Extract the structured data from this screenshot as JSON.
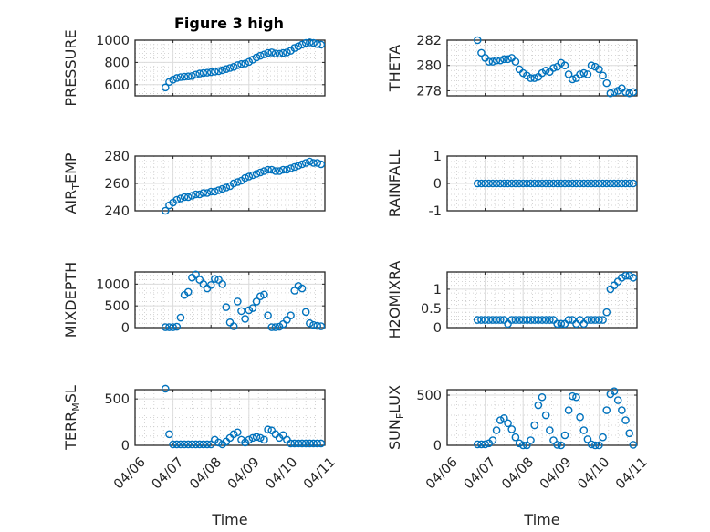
{
  "figure": {
    "title": "Figure 3 high",
    "xlabel": "Time"
  },
  "chart_data": {
    "type": "scatter",
    "title": "Figure 3 high",
    "xlabel": "Time",
    "x_unit": "days since 04/06",
    "x_tick_labels": [
      "04/06",
      "04/07",
      "04/08",
      "04/09",
      "04/10",
      "04/11"
    ],
    "xlim": [
      0,
      5
    ],
    "grid": "major+minor",
    "marker_color": "#0072BD",
    "x": [
      0.8,
      0.9,
      1.0,
      1.1,
      1.2,
      1.3,
      1.4,
      1.5,
      1.6,
      1.7,
      1.8,
      1.9,
      2.0,
      2.1,
      2.2,
      2.3,
      2.4,
      2.5,
      2.6,
      2.7,
      2.8,
      2.9,
      3.0,
      3.1,
      3.2,
      3.3,
      3.4,
      3.5,
      3.6,
      3.7,
      3.8,
      3.9,
      4.0,
      4.1,
      4.2,
      4.3,
      4.4,
      4.5,
      4.6,
      4.7,
      4.8,
      4.9
    ],
    "subplots": [
      {
        "ylabel": "PRESSURE",
        "ylim": [
          500,
          1000
        ],
        "yticks": [
          600,
          800,
          1000
        ],
        "col": 0,
        "row": 0,
        "values": [
          575,
          625,
          645,
          660,
          668,
          672,
          675,
          678,
          690,
          700,
          705,
          708,
          712,
          718,
          722,
          730,
          740,
          750,
          760,
          775,
          785,
          790,
          805,
          825,
          845,
          860,
          872,
          885,
          890,
          880,
          878,
          885,
          890,
          905,
          930,
          945,
          960,
          975,
          980,
          975,
          965,
          960
        ]
      },
      {
        "ylabel": "THETA",
        "ylim": [
          277.6,
          282
        ],
        "yticks": [
          278,
          280,
          282
        ],
        "col": 1,
        "row": 0,
        "values": [
          282,
          281.0,
          280.6,
          280.3,
          280.3,
          280.4,
          280.4,
          280.5,
          280.5,
          280.6,
          280.3,
          279.7,
          279.4,
          279.2,
          279.0,
          279.0,
          279.1,
          279.4,
          279.6,
          279.5,
          279.8,
          279.9,
          280.2,
          280.0,
          279.3,
          278.9,
          279.0,
          279.3,
          279.4,
          279.3,
          280.0,
          279.9,
          279.7,
          279.2,
          278.6,
          277.8,
          277.9,
          278.0,
          278.2,
          277.9,
          277.8,
          277.9
        ]
      },
      {
        "ylabel": "AIR_TEMP",
        "ylim": [
          240,
          280
        ],
        "yticks": [
          240,
          260,
          280
        ],
        "col": 0,
        "row": 1,
        "values": [
          240,
          244,
          246,
          248,
          249,
          250,
          250,
          251,
          252,
          252,
          253,
          253,
          254,
          254,
          255,
          256,
          257,
          258,
          260,
          261,
          262,
          264,
          265,
          266,
          267,
          268,
          269,
          270,
          270,
          269,
          269,
          270,
          270,
          271,
          272,
          273,
          274,
          275,
          276,
          275,
          275,
          274
        ]
      },
      {
        "ylabel": "RAINFALL",
        "ylim": [
          -1,
          1
        ],
        "yticks": [
          -1,
          0,
          1
        ],
        "col": 1,
        "row": 1,
        "values": [
          0,
          0,
          0,
          0,
          0,
          0,
          0,
          0,
          0,
          0,
          0,
          0,
          0,
          0,
          0,
          0,
          0,
          0,
          0,
          0,
          0,
          0,
          0,
          0,
          0,
          0,
          0,
          0,
          0,
          0,
          0,
          0,
          0,
          0,
          0,
          0,
          0,
          0,
          0,
          0,
          0,
          0
        ]
      },
      {
        "ylabel": "MIXDEPTH",
        "ylim": [
          0,
          1280
        ],
        "yticks": [
          0,
          500,
          1000
        ],
        "col": 0,
        "row": 2,
        "values": [
          10,
          10,
          10,
          20,
          230,
          750,
          820,
          1150,
          1220,
          1100,
          1000,
          900,
          980,
          1120,
          1100,
          1000,
          470,
          120,
          30,
          600,
          380,
          200,
          400,
          450,
          600,
          720,
          760,
          280,
          10,
          10,
          20,
          80,
          180,
          280,
          850,
          960,
          900,
          360,
          100,
          60,
          40,
          30
        ]
      },
      {
        "ylabel": "H2OMIXRA",
        "ylim": [
          0,
          1.45
        ],
        "yticks": [
          0,
          0.5,
          1
        ],
        "col": 1,
        "row": 2,
        "values": [
          0.2,
          0.2,
          0.2,
          0.2,
          0.2,
          0.2,
          0.2,
          0.2,
          0.1,
          0.2,
          0.2,
          0.2,
          0.2,
          0.2,
          0.2,
          0.2,
          0.2,
          0.2,
          0.2,
          0.2,
          0.2,
          0.1,
          0.1,
          0.1,
          0.2,
          0.2,
          0.1,
          0.2,
          0.1,
          0.2,
          0.2,
          0.2,
          0.2,
          0.2,
          0.4,
          1.0,
          1.1,
          1.2,
          1.3,
          1.35,
          1.35,
          1.3
        ]
      },
      {
        "ylabel": "TERR_MSL",
        "ylim": [
          0,
          600
        ],
        "yticks": [
          0,
          500
        ],
        "col": 0,
        "row": 3,
        "values": [
          610,
          120,
          10,
          10,
          10,
          10,
          10,
          10,
          10,
          10,
          10,
          10,
          10,
          60,
          30,
          10,
          40,
          80,
          120,
          140,
          60,
          30,
          60,
          80,
          90,
          80,
          60,
          170,
          160,
          120,
          80,
          110,
          60,
          20,
          20,
          20,
          20,
          20,
          20,
          20,
          20,
          20
        ]
      },
      {
        "ylabel": "SUN_FLUX",
        "ylim": [
          0,
          555
        ],
        "yticks": [
          0,
          500
        ],
        "col": 1,
        "row": 3,
        "values": [
          10,
          10,
          10,
          20,
          50,
          150,
          250,
          270,
          220,
          160,
          80,
          20,
          0,
          0,
          50,
          200,
          400,
          480,
          300,
          150,
          50,
          5,
          0,
          100,
          350,
          490,
          480,
          280,
          150,
          60,
          10,
          0,
          0,
          80,
          350,
          510,
          540,
          450,
          350,
          250,
          120,
          5
        ]
      }
    ]
  }
}
